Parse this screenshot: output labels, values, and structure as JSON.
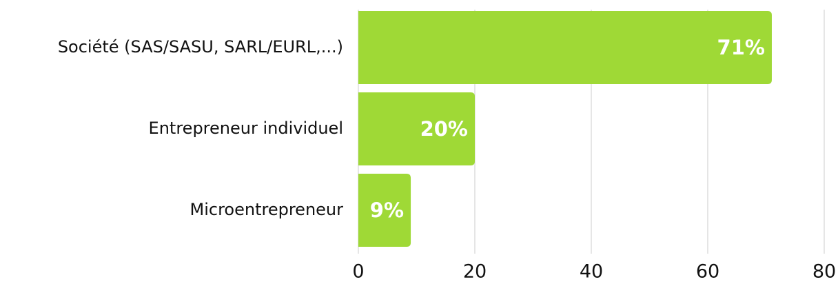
{
  "chart_data": {
    "type": "bar",
    "orientation": "horizontal",
    "categories": [
      "Société (SAS/SASU, SARL/EURL,...)",
      "Entrepreneur individuel",
      "Microentrepreneur"
    ],
    "values": [
      71,
      20,
      9
    ],
    "value_labels": [
      "71%",
      "20%",
      "9%"
    ],
    "color": "#9fd936",
    "xlim": [
      0,
      80
    ],
    "xticks": [
      0,
      20,
      40,
      60,
      80
    ],
    "grid": true
  }
}
